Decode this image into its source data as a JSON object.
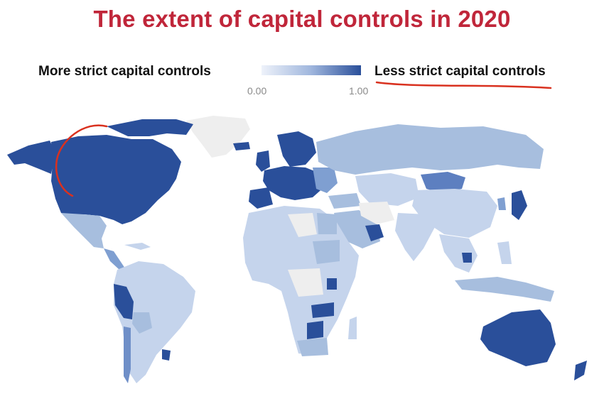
{
  "title": "The extent of capital controls in 2020",
  "legend": {
    "left_label": "More strict capital controls",
    "right_label": "Less strict capital controls",
    "min_tick": "0.00",
    "max_tick": "1.00",
    "colors": {
      "low": "#e8eef8",
      "mid": "#a7bede",
      "high": "#2a4f9a",
      "nodata": "#eeeeee"
    }
  },
  "annotation_color": "#d9311f"
}
